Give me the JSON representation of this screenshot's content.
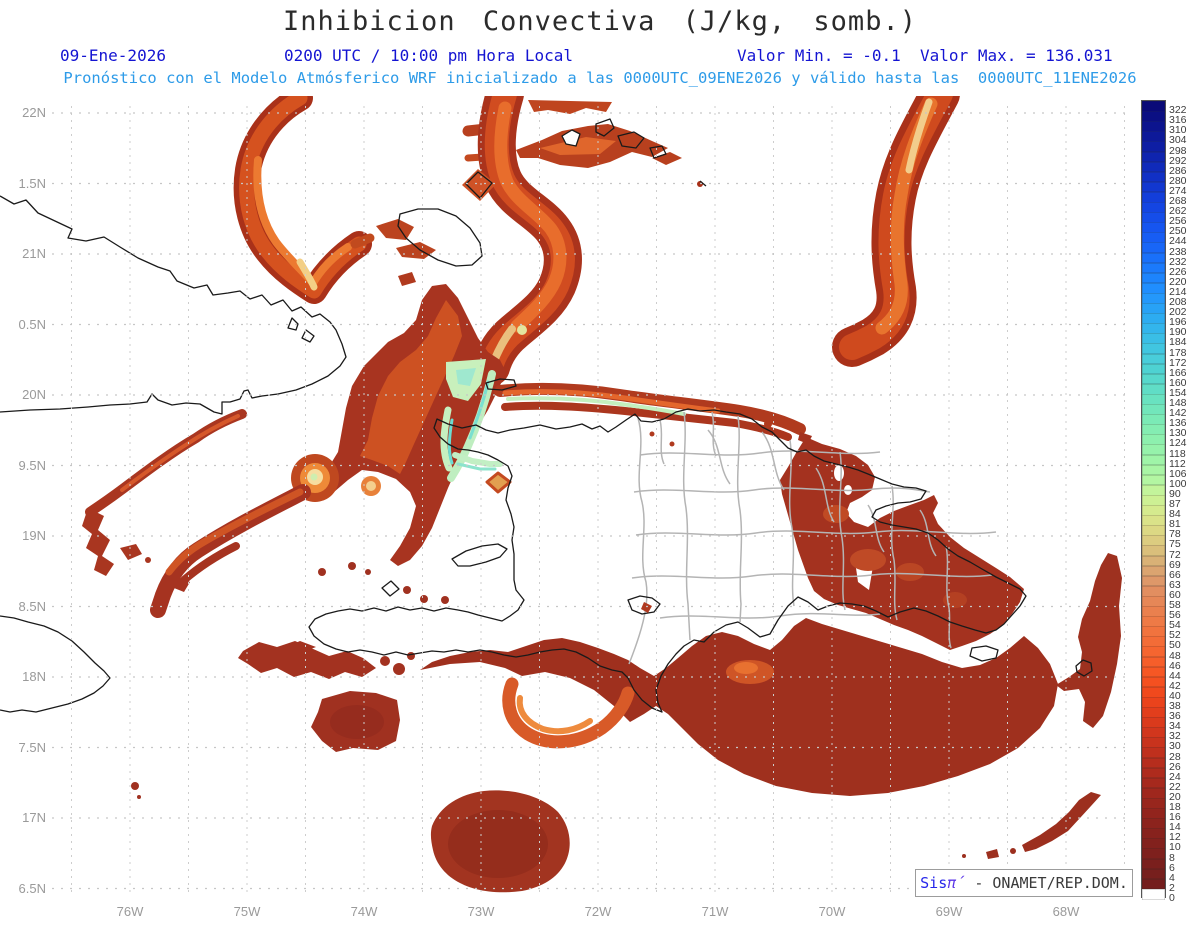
{
  "header": {
    "title": "Inhibicion Convectiva (J/kg, somb.)",
    "date": "09-Ene-2026",
    "time_line": "0200 UTC / 10:00 pm Hora Local",
    "valor_min": "Valor Min. = -0.1",
    "valor_max": "Valor Max. = 136.031",
    "model_line": "Pronóstico con el Modelo Atmósferico WRF inicializado a las 0000UTC_09ENE2026 y válido hasta las  0000UTC_11ENE2026"
  },
  "axes": {
    "lat_labels": [
      "22N",
      "1.5N",
      "21N",
      "0.5N",
      "20N",
      "9.5N",
      "19N",
      "8.5N",
      "18N",
      "7.5N",
      "17N",
      "6.5N"
    ],
    "lon_labels": [
      "76W",
      "75W",
      "74W",
      "73W",
      "72W",
      "71W",
      "70W",
      "69W",
      "68W"
    ]
  },
  "colorbar": {
    "units": "J/kg",
    "ticks": [
      322,
      316,
      310,
      304,
      298,
      292,
      286,
      280,
      274,
      268,
      262,
      256,
      250,
      244,
      238,
      232,
      226,
      220,
      214,
      208,
      202,
      196,
      190,
      184,
      178,
      172,
      166,
      160,
      154,
      148,
      142,
      136,
      130,
      124,
      118,
      112,
      106,
      100,
      90,
      87,
      84,
      81,
      78,
      75,
      72,
      69,
      66,
      63,
      60,
      58,
      56,
      54,
      52,
      50,
      48,
      46,
      44,
      42,
      40,
      38,
      36,
      34,
      32,
      30,
      28,
      26,
      24,
      22,
      20,
      18,
      16,
      14,
      12,
      10,
      8,
      6,
      4,
      2,
      0
    ],
    "colors": [
      "#0a0a78",
      "#0b0f83",
      "#0c148e",
      "#0d1999",
      "#0e1ea4",
      "#0f24af",
      "#102aba",
      "#1130c5",
      "#1237d0",
      "#133eda",
      "#1445e2",
      "#154de9",
      "#1655f0",
      "#175df4",
      "#1866f7",
      "#1970fa",
      "#1b7afc",
      "#1d84fd",
      "#208efe",
      "#2498fb",
      "#28a2f6",
      "#2dacf1",
      "#33b5ec",
      "#3abee6",
      "#41c6e0",
      "#49cdda",
      "#4ed2d2",
      "#57d8cc",
      "#60ddc6",
      "#69e2c0",
      "#72e6bb",
      "#7beab6",
      "#84edb2",
      "#8df0ae",
      "#96f2ab",
      "#9ff4a8",
      "#a9f5a5",
      "#b3f6a2",
      "#c3f49b",
      "#cdf094",
      "#d5ea8e",
      "#dae289",
      "#dcd884",
      "#dccc80",
      "#dabf7b",
      "#d9b176",
      "#dba470",
      "#de9869",
      "#e28e60",
      "#e68757",
      "#ea804e",
      "#ee7a46",
      "#f1733e",
      "#f36c37",
      "#f56530",
      "#f65e2a",
      "#f65724",
      "#f45020",
      "#f0491d",
      "#ea431c",
      "#e23e1c",
      "#da3a1c",
      "#d1361d",
      "#c8331d",
      "#bf301d",
      "#b62d1d",
      "#ae2b1d",
      "#a6291d",
      "#9f271d",
      "#98261d",
      "#92241d",
      "#8c231d",
      "#87221d",
      "#82211d",
      "#7e201d",
      "#7a1f1d",
      "#771f1d",
      "#741e1d",
      "#ffffff"
    ]
  },
  "attribution": {
    "system": "Sis",
    "pi": "π´",
    "org": " - ONAMET/REP.DOM."
  },
  "colors": {
    "header_blue": "#1414d2",
    "model_line_blue": "#2d9be8",
    "title_gray": "#2b2b2b",
    "axis_gray": "#9a9a9a",
    "coastline_black": "#1a1a1a",
    "province_gray": "#b4b4b4",
    "cin_dark_red": "#a23420",
    "cin_orange": "#e86d2c",
    "cin_pale_core": "#f3cf86",
    "cin_green_core": "#bfeec0"
  }
}
